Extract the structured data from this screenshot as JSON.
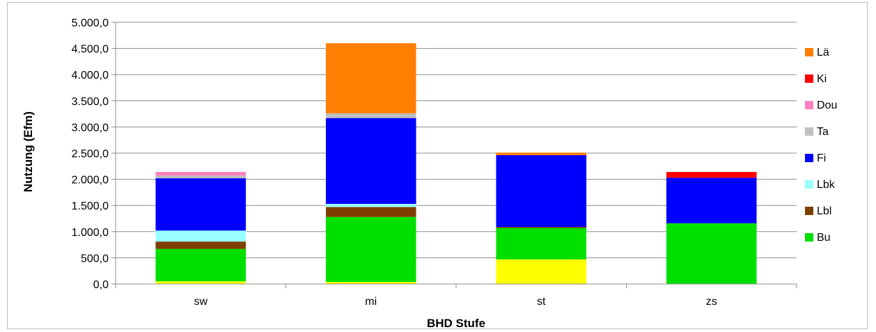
{
  "chart_data": {
    "type": "bar",
    "stacked": true,
    "title": "",
    "xlabel": "BHD Stufe",
    "ylabel": "Nutzung (Efm)",
    "ylim": [
      0,
      5000
    ],
    "ytick_step": 500,
    "ytick_labels": [
      "0,0",
      "500,0",
      "1.000,0",
      "1.500,0",
      "2.000,0",
      "2.500,0",
      "3.000,0",
      "3.500,0",
      "4.000,0",
      "4.500,0",
      "5.000,0"
    ],
    "grid": true,
    "legend_position": "right",
    "categories": [
      "sw",
      "mi",
      "st",
      "zs"
    ],
    "series": [
      {
        "name": "",
        "color": "#FFFF00",
        "values": [
          50,
          40,
          470,
          0
        ]
      },
      {
        "name": "Bu",
        "color": "#00E000",
        "values": [
          620,
          1240,
          600,
          1160
        ]
      },
      {
        "name": "Lbl",
        "color": "#7F3F00",
        "values": [
          140,
          190,
          20,
          0
        ]
      },
      {
        "name": "Lbk",
        "color": "#99FFFF",
        "values": [
          210,
          60,
          0,
          0
        ]
      },
      {
        "name": "Fi",
        "color": "#0000FF",
        "values": [
          1000,
          1640,
          1370,
          870
        ]
      },
      {
        "name": "Ta",
        "color": "#C0C0C0",
        "values": [
          50,
          90,
          0,
          0
        ]
      },
      {
        "name": "Dou",
        "color": "#FF80C0",
        "values": [
          70,
          0,
          0,
          0
        ]
      },
      {
        "name": "Ki",
        "color": "#FF0000",
        "values": [
          0,
          0,
          0,
          110
        ]
      },
      {
        "name": "Lä",
        "color": "#FF8000",
        "values": [
          0,
          1340,
          50,
          0
        ]
      }
    ],
    "legend_order": [
      "Lä",
      "Ki",
      "Dou",
      "Ta",
      "Fi",
      "Lbk",
      "Lbl",
      "Bu"
    ]
  }
}
